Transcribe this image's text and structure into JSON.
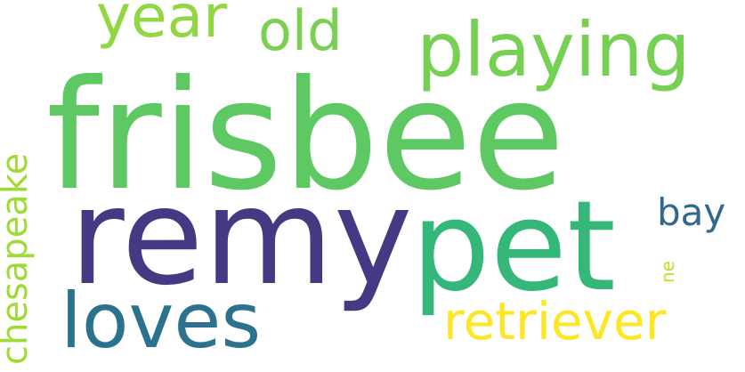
{
  "word_cloud": {
    "words": {
      "frisbee": "frisbee",
      "remy": "remy",
      "pet": "pet",
      "playing": "playing",
      "loves": "loves",
      "retriever": "retriever",
      "old": "old",
      "year": "year",
      "bay": "bay",
      "ne": "ne",
      "chesapeake": "chesapeake"
    },
    "colors": {
      "frisbee": "#5ec962",
      "remy": "#443983",
      "pet": "#35b779",
      "playing": "#75d054",
      "loves": "#2c728e",
      "retriever": "#fde725",
      "old": "#7ad151",
      "year": "#90d743",
      "bay": "#31688e",
      "ne": "#c0df25",
      "chesapeake": "#a0da39"
    }
  }
}
